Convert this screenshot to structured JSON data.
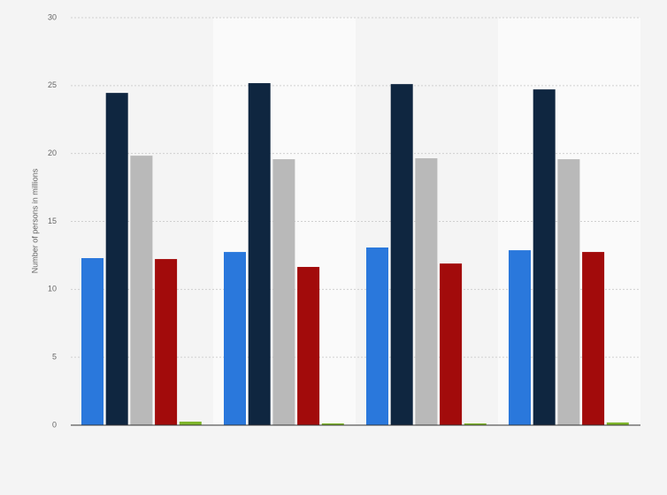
{
  "chart_data": {
    "type": "bar",
    "y_label": "Number of persons in millions",
    "categories": [
      null,
      null,
      null,
      null
    ],
    "series": [
      {
        "color": "#2a78dc",
        "values": [
          12.3,
          12.75,
          13.08,
          12.88
        ]
      },
      {
        "color": "#0f2640",
        "values": [
          24.46,
          25.18,
          25.11,
          24.72
        ]
      },
      {
        "color": "#b9b9b9",
        "values": [
          19.84,
          19.58,
          19.65,
          19.58
        ]
      },
      {
        "color": "#a20b0b",
        "values": [
          12.23,
          11.65,
          11.9,
          12.75
        ]
      },
      {
        "color": "#7fb62b",
        "values": [
          0.26,
          0.13,
          0.13,
          0.2
        ]
      }
    ],
    "ylim": [
      0,
      30
    ],
    "yticks": [
      0,
      5,
      10,
      15,
      20,
      25,
      30
    ],
    "grid": true
  }
}
